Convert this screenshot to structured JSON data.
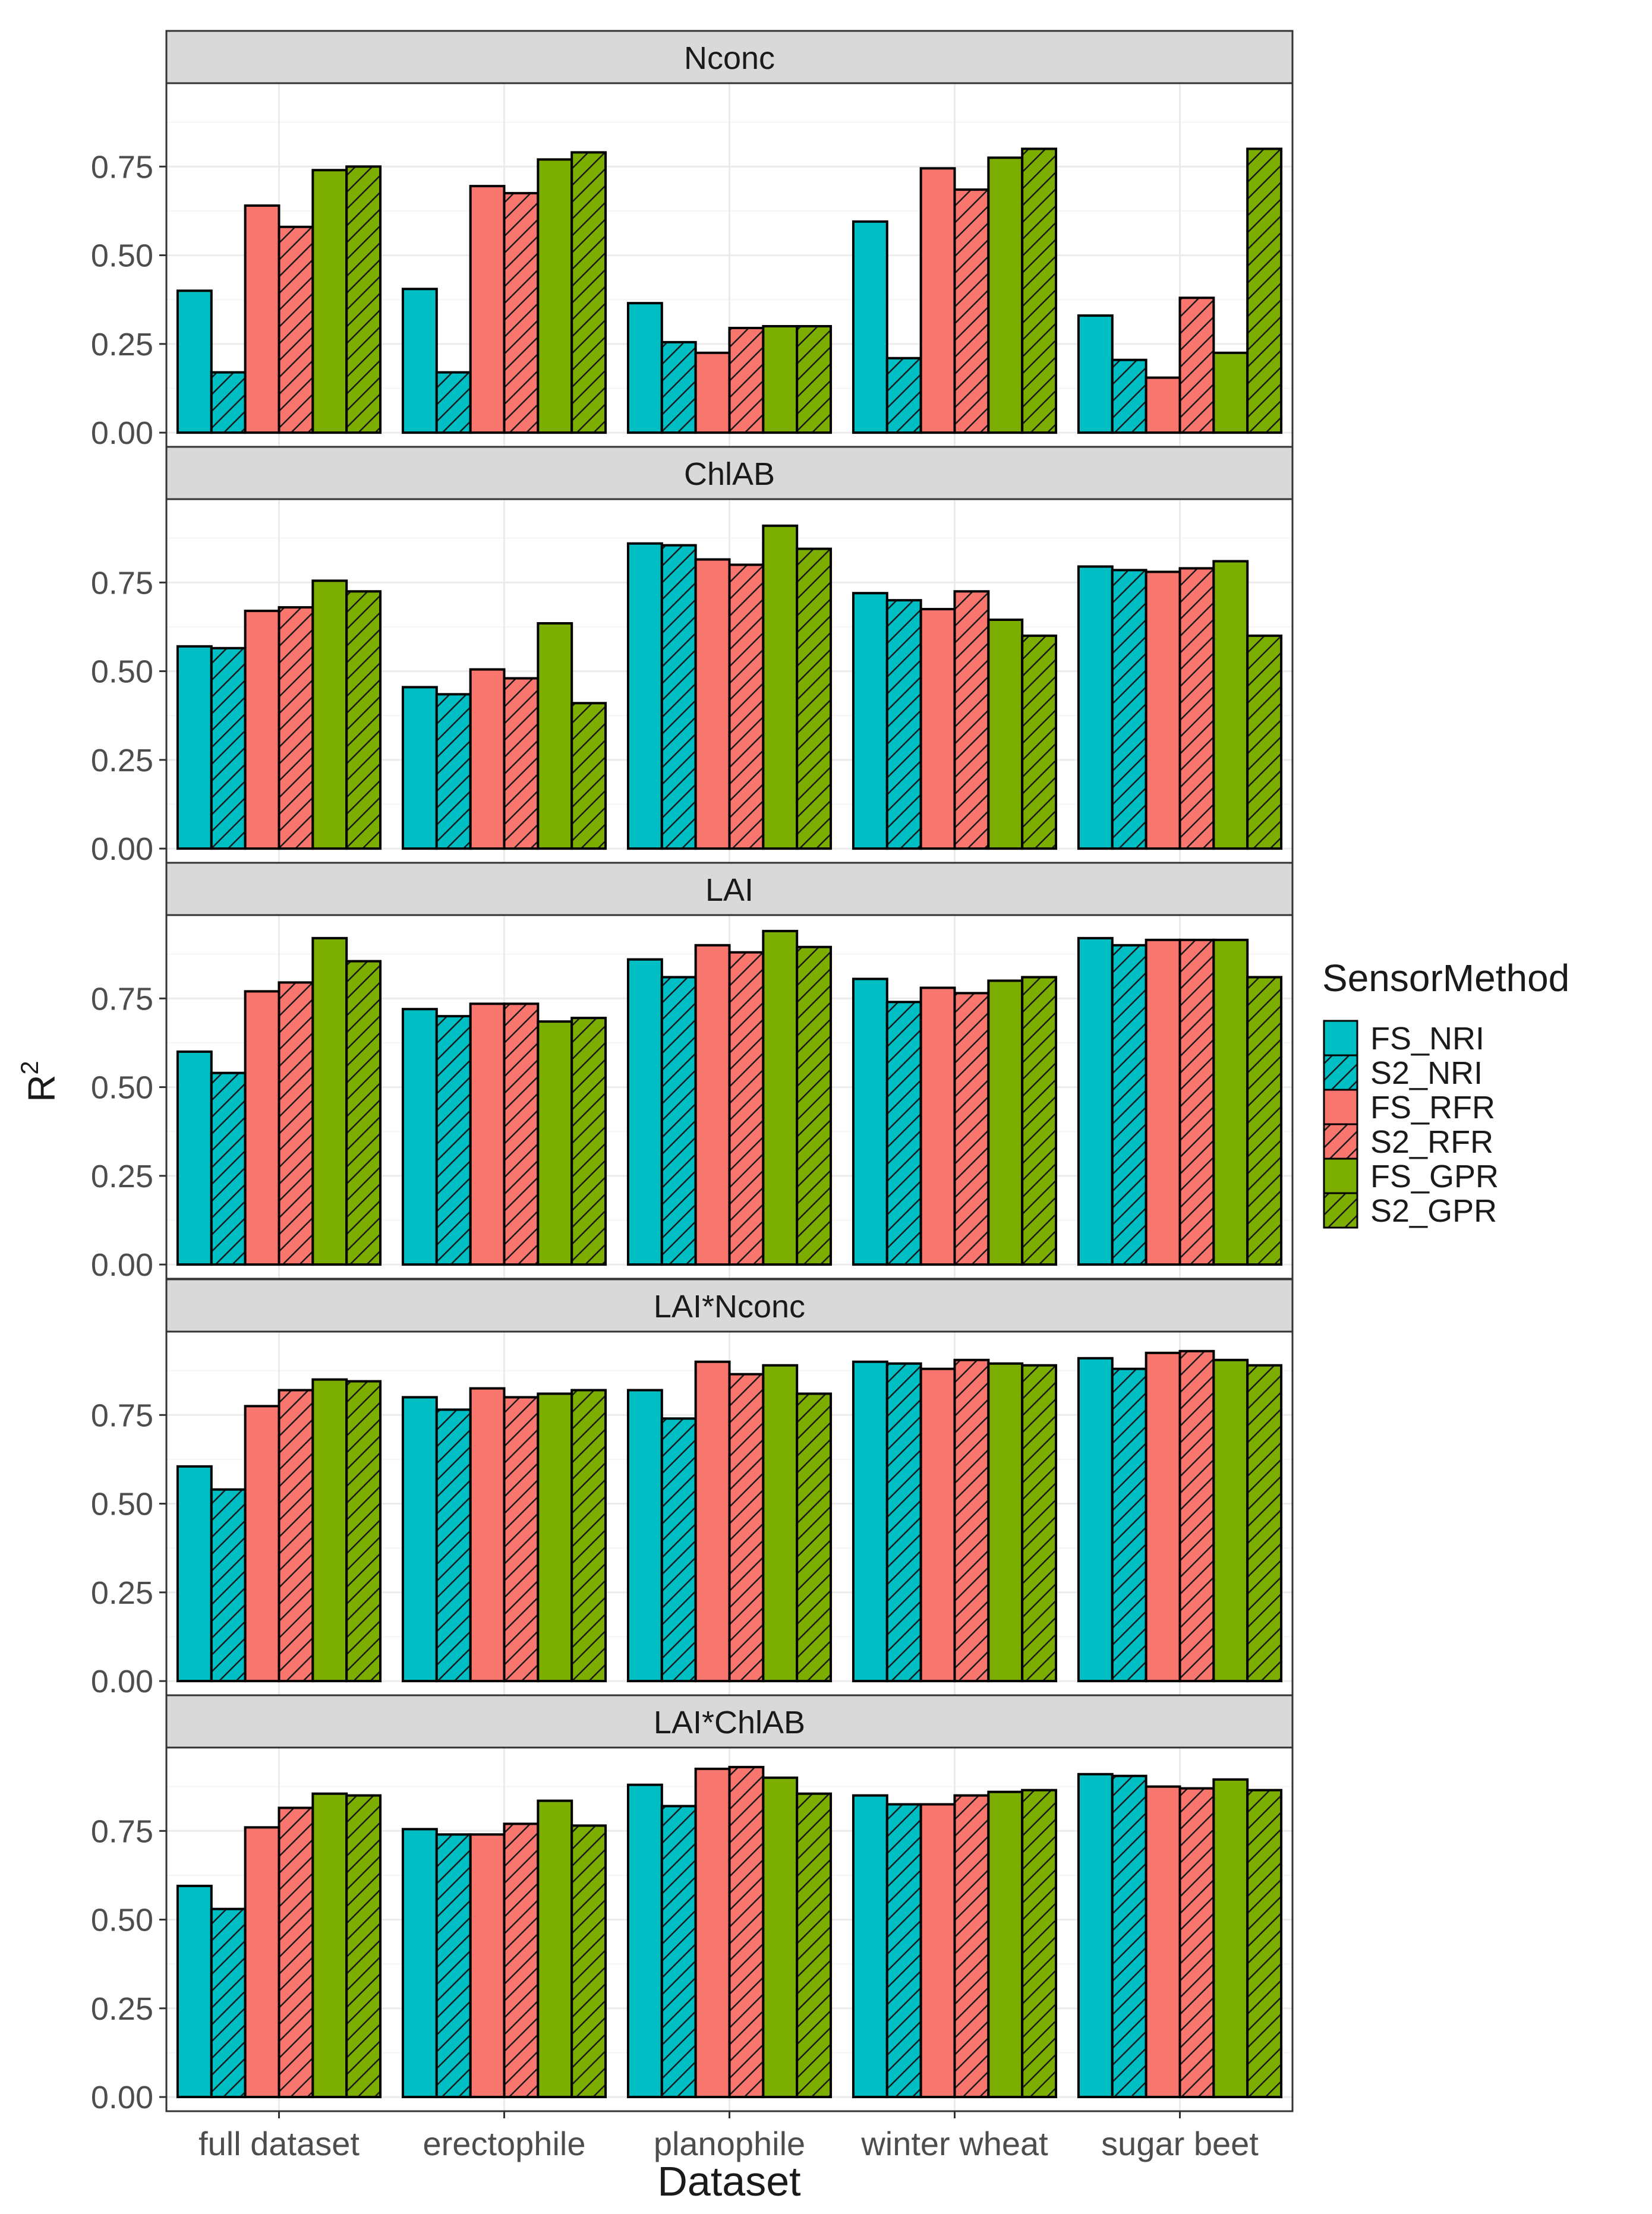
{
  "colors": {
    "FS_NRI": "#00BFC4",
    "S2_NRI": "#00BFC4",
    "FS_RFR": "#F8766D",
    "S2_RFR": "#F8766D",
    "FS_GPR": "#7CAE00",
    "S2_GPR": "#7CAE00",
    "strip": "#D9D9D9",
    "grid_major": "#EBEBEB",
    "grid_minor": "#F5F5F5",
    "panel_border": "#333333",
    "text": "#1A1A1A"
  },
  "chart_data": {
    "type": "bar",
    "subtype": "faceted-grouped",
    "xlabel": "Dataset",
    "ylabel": "R",
    "ylabel_superscript": "2",
    "ylim": [
      0,
      1
    ],
    "yticks": [
      "0.00",
      "0.25",
      "0.50",
      "0.75"
    ],
    "ytick_values": [
      0,
      0.25,
      0.5,
      0.75
    ],
    "categories": [
      "full dataset",
      "erectophile",
      "planophile",
      "winter wheat",
      "sugar beet"
    ],
    "legend": {
      "title": "SensorMethod",
      "position": "right",
      "entries": [
        "FS_NRI",
        "S2_NRI",
        "FS_RFR",
        "S2_RFR",
        "FS_GPR",
        "S2_GPR"
      ],
      "hatched": [
        false,
        true,
        false,
        true,
        false,
        true
      ]
    },
    "panels": [
      {
        "title": "Nconc",
        "series": [
          {
            "name": "FS_NRI",
            "values": [
              0.4,
              0.405,
              0.365,
              0.595,
              0.33
            ]
          },
          {
            "name": "S2_NRI",
            "values": [
              0.17,
              0.17,
              0.255,
              0.21,
              0.205
            ]
          },
          {
            "name": "FS_RFR",
            "values": [
              0.64,
              0.695,
              0.225,
              0.745,
              0.155
            ]
          },
          {
            "name": "S2_RFR",
            "values": [
              0.58,
              0.675,
              0.295,
              0.685,
              0.38
            ]
          },
          {
            "name": "FS_GPR",
            "values": [
              0.74,
              0.77,
              0.3,
              0.775,
              0.225
            ]
          },
          {
            "name": "S2_GPR",
            "values": [
              0.75,
              0.79,
              0.3,
              0.8,
              0.8
            ]
          }
        ]
      },
      {
        "title": "ChlAB",
        "series": [
          {
            "name": "FS_NRI",
            "values": [
              0.57,
              0.455,
              0.86,
              0.72,
              0.795
            ]
          },
          {
            "name": "S2_NRI",
            "values": [
              0.565,
              0.435,
              0.855,
              0.7,
              0.785
            ]
          },
          {
            "name": "FS_RFR",
            "values": [
              0.67,
              0.505,
              0.815,
              0.675,
              0.78
            ]
          },
          {
            "name": "S2_RFR",
            "values": [
              0.68,
              0.48,
              0.8,
              0.725,
              0.79
            ]
          },
          {
            "name": "FS_GPR",
            "values": [
              0.755,
              0.635,
              0.91,
              0.645,
              0.81
            ]
          },
          {
            "name": "S2_GPR",
            "values": [
              0.725,
              0.41,
              0.845,
              0.6,
              0.6
            ]
          }
        ]
      },
      {
        "title": "LAI",
        "series": [
          {
            "name": "FS_NRI",
            "values": [
              0.6,
              0.72,
              0.86,
              0.805,
              0.92
            ]
          },
          {
            "name": "S2_NRI",
            "values": [
              0.54,
              0.7,
              0.81,
              0.74,
              0.9
            ]
          },
          {
            "name": "FS_RFR",
            "values": [
              0.77,
              0.735,
              0.9,
              0.78,
              0.915
            ]
          },
          {
            "name": "S2_RFR",
            "values": [
              0.795,
              0.735,
              0.88,
              0.765,
              0.915
            ]
          },
          {
            "name": "FS_GPR",
            "values": [
              0.92,
              0.685,
              0.94,
              0.8,
              0.915
            ]
          },
          {
            "name": "S2_GPR",
            "values": [
              0.855,
              0.695,
              0.895,
              0.81,
              0.81
            ]
          }
        ]
      },
      {
        "title": "LAI*Nconc",
        "series": [
          {
            "name": "FS_NRI",
            "values": [
              0.605,
              0.8,
              0.82,
              0.9,
              0.91
            ]
          },
          {
            "name": "S2_NRI",
            "values": [
              0.54,
              0.765,
              0.74,
              0.895,
              0.88
            ]
          },
          {
            "name": "FS_RFR",
            "values": [
              0.775,
              0.825,
              0.9,
              0.88,
              0.925
            ]
          },
          {
            "name": "S2_RFR",
            "values": [
              0.82,
              0.8,
              0.865,
              0.905,
              0.93
            ]
          },
          {
            "name": "FS_GPR",
            "values": [
              0.85,
              0.81,
              0.89,
              0.895,
              0.905
            ]
          },
          {
            "name": "S2_GPR",
            "values": [
              0.845,
              0.82,
              0.81,
              0.89,
              0.89
            ]
          }
        ]
      },
      {
        "title": "LAI*ChlAB",
        "series": [
          {
            "name": "FS_NRI",
            "values": [
              0.595,
              0.755,
              0.88,
              0.85,
              0.91
            ]
          },
          {
            "name": "S2_NRI",
            "values": [
              0.53,
              0.74,
              0.82,
              0.825,
              0.905
            ]
          },
          {
            "name": "FS_RFR",
            "values": [
              0.76,
              0.74,
              0.925,
              0.825,
              0.875
            ]
          },
          {
            "name": "S2_RFR",
            "values": [
              0.815,
              0.77,
              0.93,
              0.85,
              0.87
            ]
          },
          {
            "name": "FS_GPR",
            "values": [
              0.855,
              0.835,
              0.9,
              0.86,
              0.895
            ]
          },
          {
            "name": "S2_GPR",
            "values": [
              0.85,
              0.765,
              0.855,
              0.865,
              0.865
            ]
          }
        ]
      }
    ]
  }
}
